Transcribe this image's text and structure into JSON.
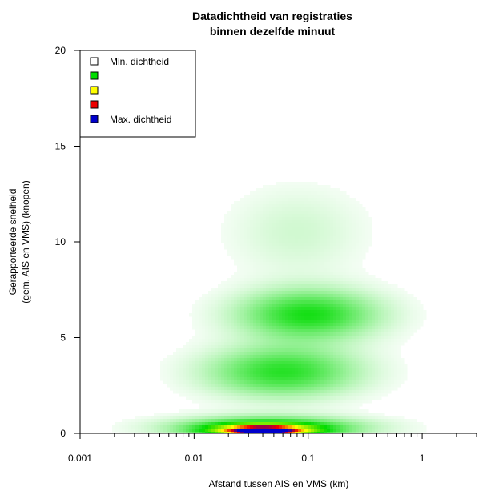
{
  "chart_data": {
    "type": "heatmap",
    "title": "Datadichtheid van registraties",
    "subtitle": "binnen dezelfde minuut",
    "xlabel": "Afstand tussen AIS en VMS (km)",
    "ylabel": "Gerapporteerde snelheid",
    "ylabel_line2": "(gem. AIS en VMS) (knopen)",
    "x_scale": "log",
    "xlim": [
      0.001,
      3
    ],
    "ylim": [
      0,
      20
    ],
    "x_ticks": [
      {
        "value": 0.001,
        "label": "0.001"
      },
      {
        "value": 0.01,
        "label": "0.01"
      },
      {
        "value": 0.1,
        "label": "0.1"
      },
      {
        "value": 1,
        "label": "1"
      }
    ],
    "y_ticks": [
      {
        "value": 0,
        "label": "0"
      },
      {
        "value": 5,
        "label": "5"
      },
      {
        "value": 10,
        "label": "10"
      },
      {
        "value": 15,
        "label": "15"
      },
      {
        "value": 20,
        "label": "20"
      }
    ],
    "legend_position": "top-left",
    "legend": [
      {
        "label": "Min. dichtheid",
        "color": "#ffffff"
      },
      {
        "label": "",
        "color": "#00dd00"
      },
      {
        "label": "",
        "color": "#ffff00"
      },
      {
        "label": "",
        "color": "#ee0000"
      },
      {
        "label": "Max. dichtheid",
        "color": "#0000cc"
      }
    ],
    "density_clusters": [
      {
        "x": 0.045,
        "y": 0.3,
        "log_sigma_x": 0.55,
        "sigma_y": 0.4,
        "weight": 0.35
      },
      {
        "x": 0.04,
        "y": 0.15,
        "log_sigma_x": 0.32,
        "sigma_y": 0.22,
        "weight": 0.55
      },
      {
        "x": 0.04,
        "y": 0.1,
        "log_sigma_x": 0.18,
        "sigma_y": 0.14,
        "weight": 0.6
      },
      {
        "x": 0.04,
        "y": 0.06,
        "log_sigma_x": 0.08,
        "sigma_y": 0.08,
        "weight": 0.7
      },
      {
        "x": 0.06,
        "y": 3.2,
        "log_sigma_x": 0.45,
        "sigma_y": 0.9,
        "weight": 0.28
      },
      {
        "x": 0.1,
        "y": 6.2,
        "log_sigma_x": 0.42,
        "sigma_y": 0.9,
        "weight": 0.3
      },
      {
        "x": 0.08,
        "y": 10.5,
        "log_sigma_x": 0.4,
        "sigma_y": 1.6,
        "weight": 0.06
      }
    ]
  }
}
